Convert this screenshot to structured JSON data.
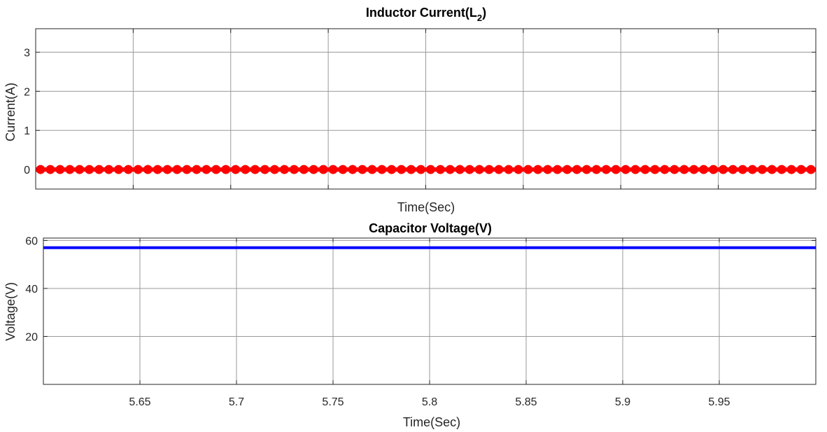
{
  "chart_data": [
    {
      "type": "line",
      "title": "Inductor Current(L",
      "title_subscript": "2",
      "title_suffix": ")",
      "xlabel": "Time(Sec)",
      "ylabel": "Current(A)",
      "xlim": [
        5.6,
        6.0
      ],
      "ylim": [
        -0.5,
        3.6
      ],
      "yticks": [
        0,
        1,
        2,
        3
      ],
      "xticks": [
        5.6,
        5.65,
        5.7,
        5.75,
        5.8,
        5.85,
        5.9,
        5.95
      ],
      "show_xtick_labels": false,
      "grid": true,
      "series": [
        {
          "color": "#ff0000",
          "marker": "circle",
          "x_start": 5.6,
          "x_end": 6.0,
          "marker_count": 80,
          "value": 0.0
        }
      ]
    },
    {
      "type": "line",
      "title": "Capacitor Voltage(V)",
      "xlabel": "Time(Sec)",
      "ylabel": "Voltage(V)",
      "xlim": [
        5.6,
        6.0
      ],
      "ylim": [
        0,
        61
      ],
      "yticks": [
        20,
        40,
        60
      ],
      "xticks": [
        5.65,
        5.7,
        5.75,
        5.8,
        5.85,
        5.9,
        5.95
      ],
      "xtick_labels": [
        "5.65",
        "5.7",
        "5.75",
        "5.8",
        "5.85",
        "5.9",
        "5.95"
      ],
      "grid": true,
      "series": [
        {
          "color": "#0000ff",
          "x": [
            5.6,
            6.0
          ],
          "y": [
            57,
            57
          ]
        }
      ]
    }
  ]
}
